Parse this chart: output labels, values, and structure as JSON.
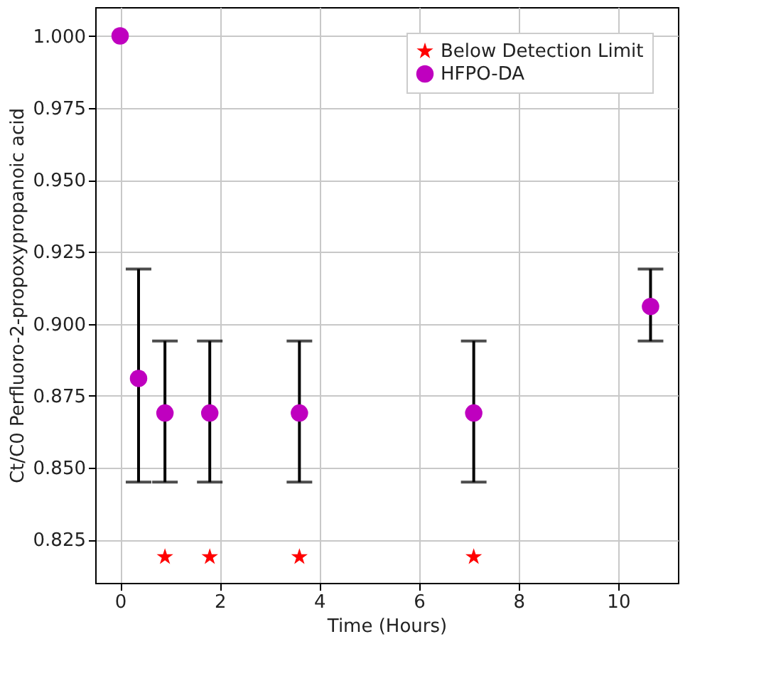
{
  "chart_data": {
    "type": "scatter",
    "xlabel": "Time (Hours)",
    "ylabel": "Ct/C0 Perfluoro-2-propoxypropanoic acid",
    "xlim": [
      -0.5,
      11.2
    ],
    "xticks": [
      0,
      2,
      4,
      6,
      8,
      10
    ],
    "ylim": [
      0.81,
      1.01
    ],
    "yticks": [
      0.825,
      {
        "value": 0.85,
        "label": "0.850"
      },
      0.875,
      {
        "value": 0.9,
        "label": "0.900"
      },
      0.925,
      {
        "value": 0.95,
        "label": "0.950"
      },
      0.975,
      {
        "value": 1.0,
        "label": "1.000"
      }
    ],
    "grid": true,
    "legend": "top right",
    "series": [
      {
        "name": "Below Detection Limit",
        "color": "#ff0000",
        "marker": "star",
        "x": [
          0.9,
          1.8,
          3.6,
          7.1
        ],
        "values": [
          0.819,
          0.819,
          0.819,
          0.819
        ]
      },
      {
        "name": "HFPO-DA",
        "color": "#bf00bf",
        "marker": "circle",
        "x": [
          0,
          0.37,
          0.9,
          1.8,
          3.6,
          7.1,
          10.65
        ],
        "values": [
          1.0,
          0.881,
          0.869,
          0.869,
          0.869,
          0.869,
          0.906
        ],
        "errors": [
          null,
          [
            0.845,
            0.919
          ],
          [
            0.845,
            0.894
          ],
          [
            0.845,
            0.894
          ],
          [
            0.845,
            0.894
          ],
          [
            0.845,
            0.894
          ],
          [
            0.894,
            0.919
          ]
        ]
      }
    ]
  }
}
